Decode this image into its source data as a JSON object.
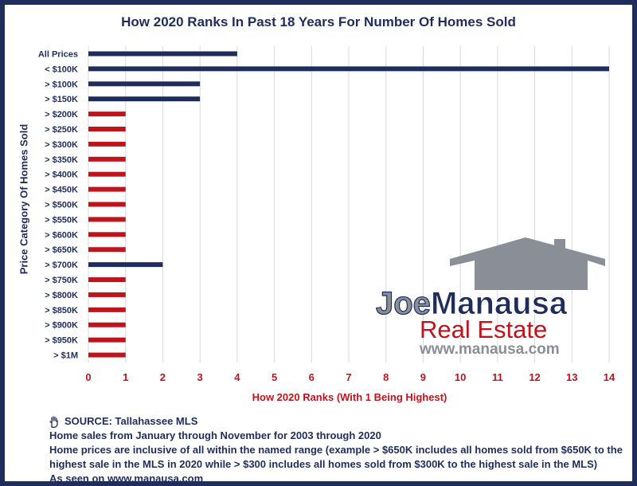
{
  "chart_data": {
    "type": "bar",
    "orientation": "horizontal",
    "title": "How 2020 Ranks In Past 18 Years For Number Of Homes Sold",
    "xlabel": "How 2020 Ranks (With 1 Being Highest)",
    "ylabel": "Price Category Of Homes Sold",
    "xlim": [
      0,
      14
    ],
    "xticks": [
      "0",
      "1",
      "2",
      "3",
      "4",
      "5",
      "6",
      "7",
      "8",
      "9",
      "10",
      "11",
      "12",
      "13",
      "14"
    ],
    "grid": "vertical",
    "categories": [
      "All Prices",
      "< $100K",
      "> $100K",
      "> $150K",
      "> $200K",
      "> $250K",
      "> $300K",
      "> $350K",
      "> $400K",
      "> $450K",
      "> $500K",
      "> $550K",
      "> $600K",
      "> $650K",
      "> $700K",
      "> $750K",
      "> $800K",
      "> $850K",
      "> $900K",
      "> $950K",
      "> $1M"
    ],
    "values": [
      4,
      14,
      3,
      3,
      1,
      1,
      1,
      1,
      1,
      1,
      1,
      1,
      1,
      1,
      2,
      1,
      1,
      1,
      1,
      1,
      1
    ],
    "colors": {
      "not_top_rank": "#1f2d5c",
      "top_rank": "#c0141c",
      "text_dark": "#1f2d5c",
      "text_red": "#c0141c"
    }
  },
  "logo": {
    "line1_a": "Joe",
    "line1_b": "Manausa",
    "line2": "Real Estate",
    "line3": "www.manausa.com",
    "house_icon": "house-silhouette-icon",
    "colors": {
      "house": "#8a8f97",
      "joe": "#8a8f97",
      "manausa": "#1f2d5c",
      "real_estate": "#c0141c",
      "url": "#8a8f97"
    }
  },
  "footer": {
    "source_icon": "raised-hand-icon",
    "source": "SOURCE: Tallahassee MLS",
    "note1": "Home sales from January through November for 2003 through 2020",
    "note2": "Home prices are inclusive of all within the named range (example > $650K includes all homes sold from $650K to the highest sale in the MLS in 2020 while > $300 includes all homes sold from $300K to the highest sale in the MLS)",
    "as_seen_prefix": "As seen on ",
    "as_seen_link": "www.manausa.com"
  }
}
